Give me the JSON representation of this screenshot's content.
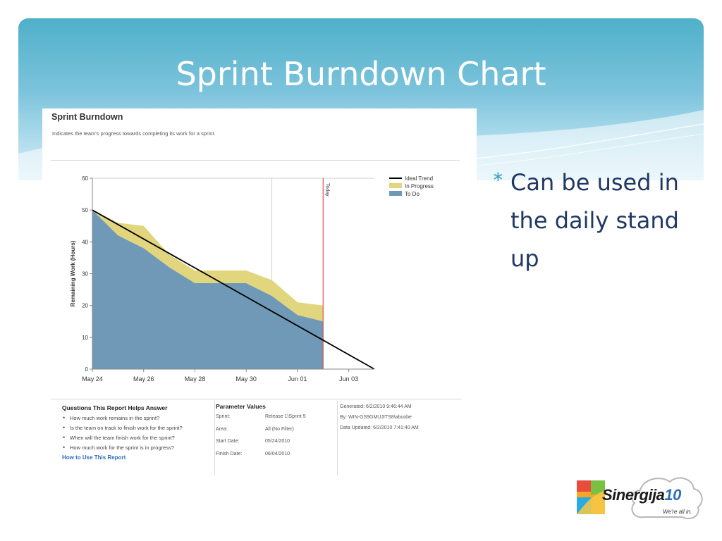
{
  "slide": {
    "title": "Sprint Burndown Chart",
    "bullet": "Can be used in the daily stand up",
    "bullet_glyph": "∗"
  },
  "report": {
    "title": "Sprint Burndown",
    "description": "Indicates the team's progress towards completing its work for a sprint.",
    "questions": {
      "heading": "Questions This Report Helps Answer",
      "items": [
        "How much work remains in the sprint?",
        "Is the team on track to finish work for the sprint?",
        "When will the team finish work for the sprint?",
        "How much work for the sprint is in progress?"
      ],
      "link": "How to Use This Report"
    },
    "parameters": {
      "heading": "Parameter Values",
      "rows": [
        {
          "key": "Sprint:",
          "value": "Release 1\\Sprint 5"
        },
        {
          "key": "Area:",
          "value": "All (No Filter)"
        },
        {
          "key": "Start Date:",
          "value": "05/24/2010"
        },
        {
          "key": "Finish Date:",
          "value": "06/04/2010"
        }
      ]
    },
    "generated": {
      "generated": "Generated: 6/2/2010 9:46:44 AM",
      "by": "By: WIN-GS9GMUJITS8\\abuobe",
      "updated": "Data Updated: 6/2/2010 7:41:40 AM"
    }
  },
  "chart_data": {
    "type": "area",
    "title": "",
    "xlabel": "",
    "ylabel": "Remaining Work (Hours)",
    "ylim": [
      0,
      60
    ],
    "yticks": [
      0,
      10,
      20,
      30,
      40,
      50,
      60
    ],
    "x_tick_labels": [
      "May 24",
      "May 26",
      "May 28",
      "May 30",
      "Jun 01",
      "Jun 03"
    ],
    "x_tick_days": [
      0,
      2,
      4,
      6,
      8,
      10
    ],
    "xlim_days": [
      0,
      11
    ],
    "x_dates": [
      "May 24",
      "May 25",
      "May 26",
      "May 27",
      "May 28",
      "May 29",
      "May 30",
      "May 31",
      "Jun 01",
      "Jun 02"
    ],
    "series": [
      {
        "name": "To Do",
        "color": "#6f99b6",
        "values": [
          50,
          42,
          38,
          32,
          27,
          27,
          27,
          23,
          17,
          15
        ]
      },
      {
        "name": "In Progress",
        "color": "#e1d67e",
        "values": [
          0,
          4,
          7,
          4,
          4,
          4,
          4,
          5,
          4,
          5
        ]
      },
      {
        "name": "Ideal Trend",
        "color": "#000000",
        "type": "line",
        "x_days": [
          0,
          11
        ],
        "values": [
          50,
          0
        ]
      }
    ],
    "today_marker": {
      "label": "Today",
      "x_date": "Jun 02",
      "color": "#d9534f"
    },
    "vertical_gridline_date": "May 31",
    "legend_position": "top-right",
    "grid": true
  },
  "logo": {
    "name": "Sinergija",
    "number": "10",
    "tagline": "We're all in."
  }
}
